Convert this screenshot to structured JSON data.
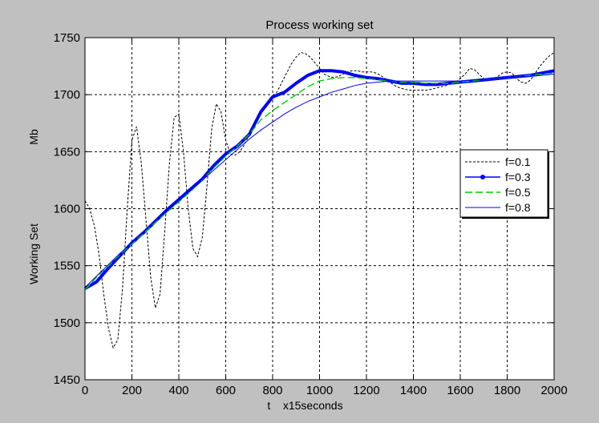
{
  "chart_data": {
    "type": "line",
    "title": "Process working set",
    "xlabel": "t    x15seconds",
    "ylabel_lines": [
      "Working Set",
      "Mb"
    ],
    "xlim": [
      0,
      2000
    ],
    "ylim": [
      1450,
      1750
    ],
    "xticks": [
      0,
      200,
      400,
      600,
      800,
      1000,
      1200,
      1400,
      1600,
      1800,
      2000
    ],
    "yticks": [
      1450,
      1500,
      1550,
      1600,
      1650,
      1700,
      1750
    ],
    "grid": true,
    "legend_position": "right",
    "series": [
      {
        "name": "f=0.1",
        "color": "#000000",
        "style": "dashed",
        "x": [
          0,
          20,
          40,
          60,
          80,
          100,
          120,
          140,
          160,
          180,
          200,
          220,
          240,
          260,
          280,
          300,
          320,
          340,
          360,
          380,
          400,
          420,
          440,
          460,
          480,
          500,
          520,
          540,
          560,
          580,
          600,
          620,
          640,
          660,
          680,
          700,
          720,
          740,
          760,
          780,
          800,
          820,
          840,
          860,
          880,
          900,
          920,
          940,
          960,
          980,
          1000,
          1020,
          1040,
          1060,
          1080,
          1100,
          1120,
          1140,
          1160,
          1180,
          1200,
          1220,
          1240,
          1260,
          1280,
          1300,
          1320,
          1340,
          1360,
          1380,
          1400,
          1420,
          1440,
          1460,
          1480,
          1500,
          1520,
          1540,
          1560,
          1580,
          1600,
          1620,
          1640,
          1660,
          1680,
          1700,
          1720,
          1740,
          1760,
          1780,
          1800,
          1820,
          1840,
          1860,
          1880,
          1900,
          1920,
          1940,
          1960,
          1980,
          2000
        ],
        "y": [
          1607,
          1600,
          1585,
          1560,
          1525,
          1495,
          1478,
          1485,
          1530,
          1600,
          1660,
          1672,
          1640,
          1590,
          1540,
          1513,
          1525,
          1580,
          1640,
          1680,
          1683,
          1650,
          1600,
          1565,
          1558,
          1575,
          1620,
          1670,
          1692,
          1685,
          1660,
          1648,
          1647,
          1650,
          1656,
          1665,
          1675,
          1683,
          1688,
          1692,
          1697,
          1703,
          1711,
          1719,
          1727,
          1733,
          1737,
          1736,
          1733,
          1728,
          1723,
          1718,
          1716,
          1715,
          1716,
          1718,
          1720,
          1721,
          1721,
          1720,
          1720,
          1720,
          1719,
          1717,
          1714,
          1711,
          1708,
          1706,
          1705,
          1704,
          1704,
          1704,
          1704,
          1704,
          1705,
          1706,
          1707,
          1708,
          1710,
          1711,
          1714,
          1718,
          1723,
          1722,
          1718,
          1714,
          1713,
          1714,
          1716,
          1719,
          1720,
          1719,
          1714,
          1711,
          1710,
          1713,
          1719,
          1725,
          1730,
          1734,
          1737
        ]
      },
      {
        "name": "f=0.3",
        "color": "#0000ff",
        "style": "solid-dot",
        "x": [
          0,
          50,
          100,
          150,
          200,
          250,
          300,
          350,
          400,
          450,
          500,
          550,
          600,
          650,
          700,
          750,
          800,
          850,
          900,
          950,
          1000,
          1050,
          1100,
          1150,
          1200,
          1250,
          1300,
          1350,
          1400,
          1450,
          1500,
          1550,
          1600,
          1650,
          1700,
          1750,
          1800,
          1850,
          1900,
          1950,
          2000
        ],
        "y": [
          1530,
          1536,
          1548,
          1559,
          1570,
          1579,
          1589,
          1599,
          1608,
          1617,
          1626,
          1638,
          1648,
          1655,
          1665,
          1685,
          1698,
          1702,
          1710,
          1717,
          1721,
          1721,
          1720,
          1717,
          1715,
          1714,
          1712,
          1710,
          1710,
          1709,
          1709,
          1710,
          1711,
          1712,
          1713,
          1714,
          1715,
          1716,
          1717,
          1719,
          1721
        ]
      },
      {
        "name": "f=0.5",
        "color": "#00cc00",
        "style": "dashed",
        "x": [
          0,
          50,
          100,
          150,
          200,
          250,
          300,
          350,
          400,
          450,
          500,
          550,
          600,
          650,
          700,
          750,
          800,
          850,
          900,
          950,
          1000,
          1050,
          1100,
          1150,
          1200,
          1250,
          1300,
          1350,
          1400,
          1450,
          1500,
          1550,
          1600,
          1650,
          1700,
          1750,
          1800,
          1850,
          1900,
          1950,
          2000
        ],
        "y": [
          1529,
          1540,
          1550,
          1560,
          1569,
          1578,
          1588,
          1597,
          1606,
          1615,
          1625,
          1636,
          1646,
          1655,
          1665,
          1678,
          1686,
          1693,
          1700,
          1707,
          1712,
          1714,
          1715,
          1715,
          1714,
          1713,
          1712,
          1711,
          1711,
          1710,
          1710,
          1710,
          1711,
          1712,
          1713,
          1714,
          1715,
          1716,
          1717,
          1718,
          1719
        ]
      },
      {
        "name": "f=0.8",
        "color": "#0000ff",
        "style": "solid-thin",
        "x": [
          0,
          50,
          100,
          150,
          200,
          250,
          300,
          350,
          400,
          450,
          500,
          550,
          600,
          650,
          700,
          750,
          800,
          850,
          900,
          950,
          1000,
          1050,
          1100,
          1150,
          1200,
          1250,
          1300,
          1350,
          1400,
          1450,
          1500,
          1550,
          1600,
          1650,
          1700,
          1750,
          1800,
          1850,
          1900,
          1950,
          2000
        ],
        "y": [
          1531,
          1541,
          1551,
          1561,
          1570,
          1580,
          1589,
          1598,
          1607,
          1616,
          1625,
          1634,
          1643,
          1652,
          1661,
          1669,
          1676,
          1683,
          1689,
          1694,
          1698,
          1702,
          1705,
          1708,
          1710,
          1711,
          1712,
          1712,
          1712,
          1712,
          1712,
          1712,
          1712,
          1713,
          1713,
          1714,
          1715,
          1716,
          1716,
          1717,
          1718
        ]
      }
    ]
  }
}
